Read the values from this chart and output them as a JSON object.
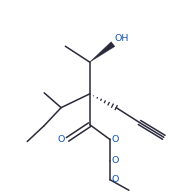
{
  "bg_color": "#ffffff",
  "line_color": "#2a2a3a",
  "atom_color_O": "#1155aa",
  "line_width": 1.1,
  "figsize": [
    1.9,
    1.92
  ],
  "dpi": 100,
  "xlim": [
    0.5,
    9.0
  ],
  "ylim": [
    0.2,
    9.2
  ]
}
